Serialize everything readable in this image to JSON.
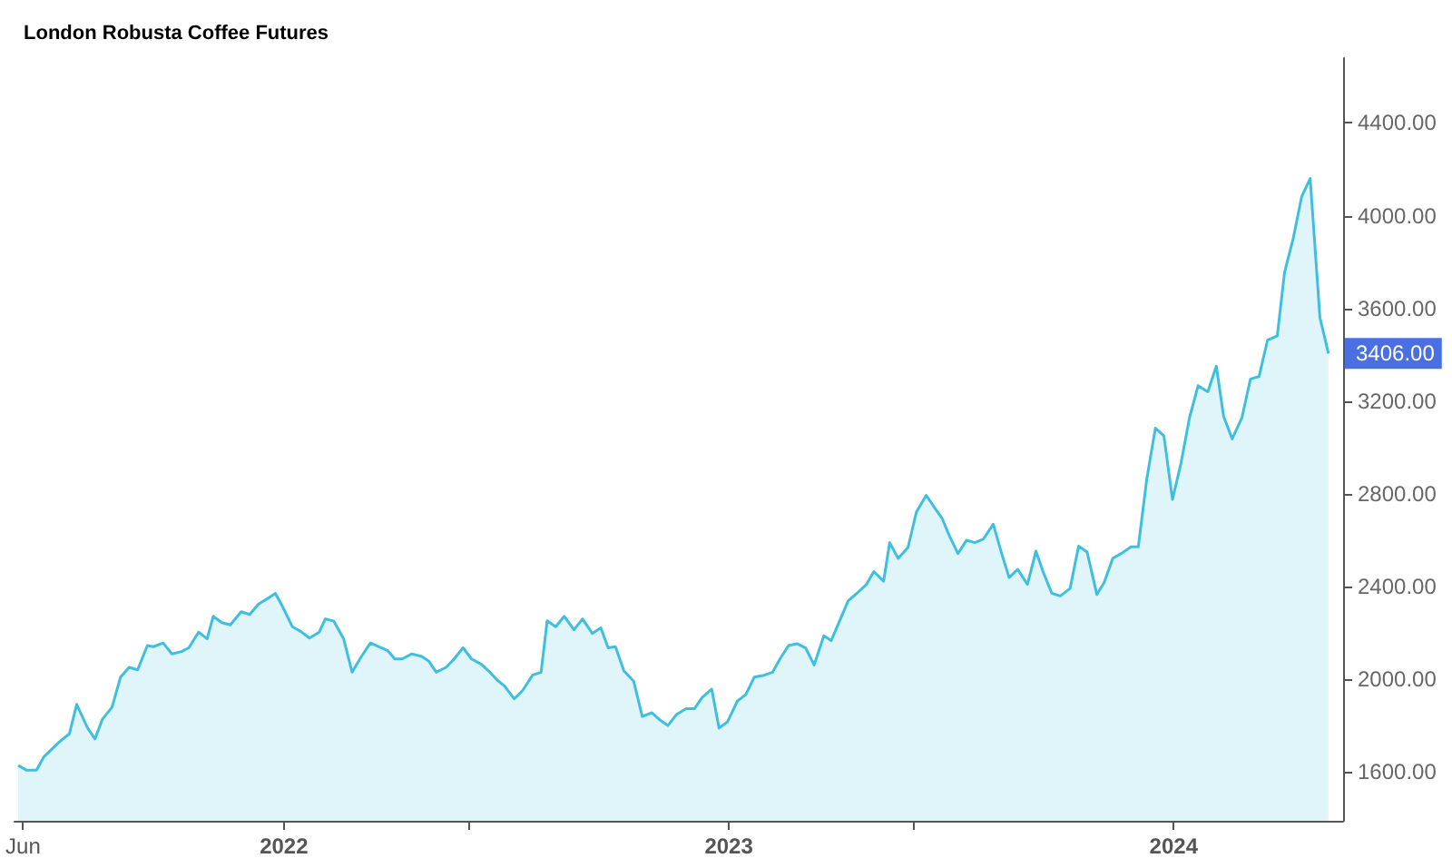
{
  "chart_data": {
    "type": "area",
    "title": "London Robusta Coffee Futures",
    "x": [
      "2021-05-28",
      "2021-06-04",
      "2021-06-12",
      "2021-06-18",
      "2021-06-24",
      "2021-07-01",
      "2021-07-09",
      "2021-07-15",
      "2021-07-24",
      "2021-07-30",
      "2021-08-05",
      "2021-08-13",
      "2021-08-20",
      "2021-08-27",
      "2021-09-03",
      "2021-09-11",
      "2021-09-16",
      "2021-09-24",
      "2021-10-01",
      "2021-10-09",
      "2021-10-15",
      "2021-10-23",
      "2021-10-30",
      "2021-11-04",
      "2021-11-11",
      "2021-11-18",
      "2021-11-27",
      "2021-12-04",
      "2021-12-11",
      "2021-12-19",
      "2021-12-25",
      "2021-12-31",
      "2022-01-08",
      "2022-01-15",
      "2022-01-22",
      "2022-01-30",
      "2022-02-04",
      "2022-02-11",
      "2022-02-19",
      "2022-02-26",
      "2022-03-05",
      "2022-03-13",
      "2022-03-20",
      "2022-03-27",
      "2022-04-02",
      "2022-04-08",
      "2022-04-16",
      "2022-04-24",
      "2022-04-30",
      "2022-05-06",
      "2022-05-14",
      "2022-05-20",
      "2022-05-28",
      "2022-06-04",
      "2022-06-12",
      "2022-06-18",
      "2022-06-25",
      "2022-07-01",
      "2022-07-09",
      "2022-07-16",
      "2022-07-24",
      "2022-07-31",
      "2022-08-05",
      "2022-08-12",
      "2022-08-19",
      "2022-08-27",
      "2022-09-03",
      "2022-09-11",
      "2022-09-18",
      "2022-09-24",
      "2022-09-30",
      "2022-10-07",
      "2022-10-15",
      "2022-10-22",
      "2022-10-30",
      "2022-11-05",
      "2022-11-12",
      "2022-11-19",
      "2022-11-27",
      "2022-12-04",
      "2022-12-10",
      "2022-12-18",
      "2022-12-24",
      "2022-12-31",
      "2023-01-08",
      "2023-01-15",
      "2023-01-22",
      "2023-01-30",
      "2023-02-06",
      "2023-02-12",
      "2023-02-19",
      "2023-02-26",
      "2023-03-05",
      "2023-03-12",
      "2023-03-20",
      "2023-03-26",
      "2023-04-02",
      "2023-04-09",
      "2023-04-17",
      "2023-04-24",
      "2023-04-30",
      "2023-05-08",
      "2023-05-13",
      "2023-05-20",
      "2023-05-28",
      "2023-06-04",
      "2023-06-12",
      "2023-06-18",
      "2023-06-25",
      "2023-07-01",
      "2023-07-08",
      "2023-07-15",
      "2023-07-22",
      "2023-07-29",
      "2023-08-06",
      "2023-08-13",
      "2023-08-19",
      "2023-08-26",
      "2023-09-03",
      "2023-09-10",
      "2023-09-16",
      "2023-09-23",
      "2023-09-30",
      "2023-10-08",
      "2023-10-15",
      "2023-10-22",
      "2023-10-30",
      "2023-11-05",
      "2023-11-12",
      "2023-11-19",
      "2023-11-27",
      "2023-12-03",
      "2023-12-10",
      "2023-12-17",
      "2023-12-24",
      "2023-12-31",
      "2024-01-07",
      "2024-01-14",
      "2024-01-21",
      "2024-01-29",
      "2024-02-05",
      "2024-02-11",
      "2024-02-18",
      "2024-02-26",
      "2024-03-04",
      "2024-03-11",
      "2024-03-18",
      "2024-03-26",
      "2024-04-01",
      "2024-04-08",
      "2024-04-15",
      "2024-04-22",
      "2024-04-30",
      "2024-05-07"
    ],
    "series": [
      {
        "color": "#3fbfe0",
        "values": [
          1629,
          1608,
          1608,
          1665,
          1696,
          1731,
          1765,
          1892,
          1790,
          1743,
          1827,
          1880,
          2010,
          2052,
          2041,
          2146,
          2141,
          2157,
          2110,
          2120,
          2136,
          2204,
          2175,
          2272,
          2245,
          2235,
          2292,
          2280,
          2324,
          2350,
          2371,
          2313,
          2227,
          2206,
          2178,
          2204,
          2261,
          2251,
          2175,
          2031,
          2094,
          2157,
          2141,
          2125,
          2088,
          2088,
          2110,
          2099,
          2078,
          2031,
          2052,
          2084,
          2136,
          2088,
          2065,
          2036,
          1997,
          1971,
          1916,
          1953,
          2018,
          2031,
          2253,
          2227,
          2272,
          2214,
          2261,
          2198,
          2222,
          2136,
          2141,
          2036,
          1992,
          1840,
          1856,
          1827,
          1801,
          1848,
          1874,
          1874,
          1921,
          1958,
          1790,
          1817,
          1906,
          1935,
          2010,
          2018,
          2031,
          2088,
          2146,
          2154,
          2136,
          2062,
          2188,
          2167,
          2253,
          2339,
          2376,
          2410,
          2465,
          2423,
          2590,
          2522,
          2569,
          2723,
          2794,
          2747,
          2695,
          2619,
          2543,
          2600,
          2590,
          2606,
          2669,
          2541,
          2439,
          2475,
          2410,
          2553,
          2462,
          2371,
          2360,
          2392,
          2575,
          2549,
          2366,
          2418,
          2522,
          2543,
          2572,
          2572,
          2867,
          3084,
          3050,
          2776,
          2933,
          3129,
          3267,
          3241,
          3351,
          3134,
          3037,
          3129,
          3296,
          3306,
          3463,
          3482,
          3757,
          3900,
          4082,
          4161,
          3560,
          3406
        ]
      }
    ],
    "xlim": [
      "2021-05-25",
      "2024-05-19"
    ],
    "xticks": [
      {
        "value": "2021-06-01",
        "label": "Jun"
      },
      {
        "value": "2022-01-01",
        "label": "2022"
      },
      {
        "value": "2022-06-01",
        "label": null
      },
      {
        "value": "2023-01-01",
        "label": "2023"
      },
      {
        "value": "2023-06-01",
        "label": null
      },
      {
        "value": "2024-01-01",
        "label": "2024"
      }
    ],
    "ylim": [
      1390,
      4680
    ],
    "yticks": [
      {
        "value": 1600,
        "label": "1600.00"
      },
      {
        "value": 2000,
        "label": "2000.00"
      },
      {
        "value": 2400,
        "label": "2400.00"
      },
      {
        "value": 2800,
        "label": "2800.00"
      },
      {
        "value": 3200,
        "label": "3200.00"
      },
      {
        "value": 3600,
        "label": "3600.00"
      },
      {
        "value": 4000,
        "label": "4000.00"
      },
      {
        "value": 4400,
        "label": "4400.00"
      }
    ],
    "annotations": [
      {
        "text": "3406.00",
        "x": "2024-05-07",
        "y": 3406
      }
    ],
    "grid": false,
    "marker": "none",
    "line_style": "solid"
  }
}
